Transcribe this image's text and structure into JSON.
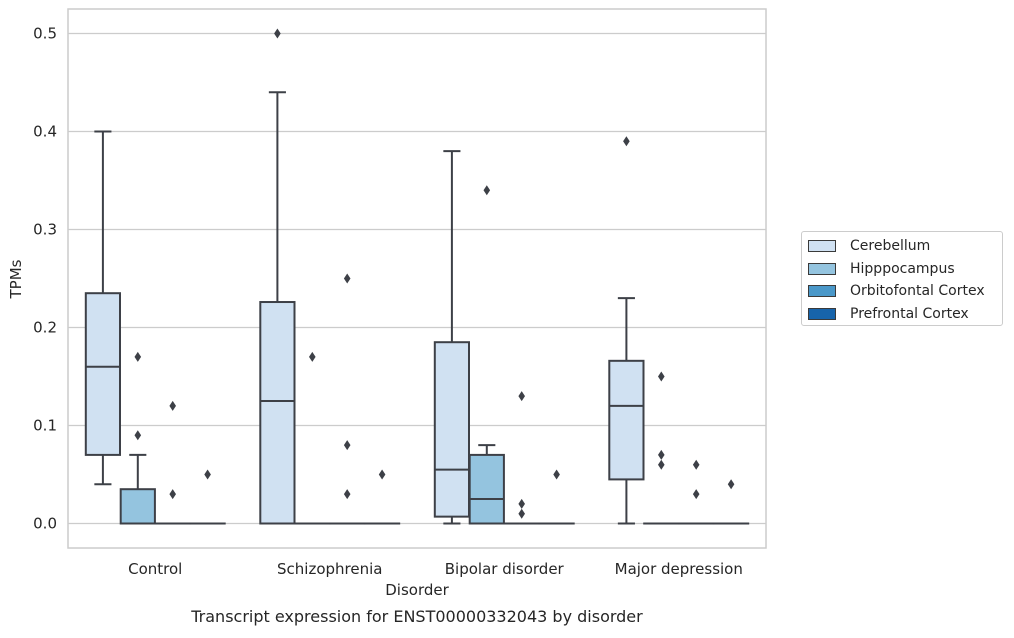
{
  "chart_data": {
    "type": "boxplot",
    "title": "",
    "caption": "Transcript expression for ENST00000332043 by disorder",
    "xlabel": "Disorder",
    "ylabel": "TPMs",
    "ylim": [
      -0.025,
      0.525
    ],
    "yticks": [
      "0.0",
      "0.1",
      "0.2",
      "0.3",
      "0.4",
      "0.5"
    ],
    "ytick_values": [
      0,
      0.1,
      0.2,
      0.3,
      0.4,
      0.5
    ],
    "grid": true,
    "legend_position": "right",
    "categories": [
      "Control",
      "Schizophrenia",
      "Bipolar disorder",
      "Major depression"
    ],
    "series": [
      {
        "name": "Cerebellum",
        "color": "#d0e1f2",
        "boxes": [
          {
            "q1": 0.07,
            "median": 0.16,
            "q3": 0.235,
            "whislo": 0.04,
            "whishi": 0.4,
            "fliers": []
          },
          {
            "q1": 0.0,
            "median": 0.125,
            "q3": 0.226,
            "whislo": 0.0,
            "whishi": 0.44,
            "fliers": [
              0.5
            ]
          },
          {
            "q1": 0.007,
            "median": 0.055,
            "q3": 0.185,
            "whislo": 0.0,
            "whishi": 0.38,
            "fliers": []
          },
          {
            "q1": 0.045,
            "median": 0.12,
            "q3": 0.166,
            "whislo": 0.0,
            "whishi": 0.23,
            "fliers": [
              0.39
            ]
          }
        ]
      },
      {
        "name": "Hipppocampus",
        "color": "#94c4df",
        "boxes": [
          {
            "q1": 0.0,
            "median": 0.0,
            "q3": 0.035,
            "whislo": 0.0,
            "whishi": 0.07,
            "fliers": [
              0.17,
              0.09
            ]
          },
          {
            "q1": 0.0,
            "median": 0.0,
            "q3": 0.0,
            "whislo": 0.0,
            "whishi": 0.0,
            "fliers": [
              0.17
            ]
          },
          {
            "q1": 0.0,
            "median": 0.025,
            "q3": 0.07,
            "whislo": 0.0,
            "whishi": 0.08,
            "fliers": [
              0.34
            ]
          },
          {
            "q1": 0.0,
            "median": 0.0,
            "q3": 0.0,
            "whislo": 0.0,
            "whishi": 0.0,
            "fliers": [
              0.15,
              0.07,
              0.06
            ]
          }
        ]
      },
      {
        "name": "Orbitofontal Cortex",
        "color": "#4a98c9",
        "boxes": [
          {
            "q1": 0.0,
            "median": 0.0,
            "q3": 0.0,
            "whislo": 0.0,
            "whishi": 0.0,
            "fliers": [
              0.12,
              0.03
            ]
          },
          {
            "q1": 0.0,
            "median": 0.0,
            "q3": 0.0,
            "whislo": 0.0,
            "whishi": 0.0,
            "fliers": [
              0.25,
              0.08,
              0.03
            ]
          },
          {
            "q1": 0.0,
            "median": 0.0,
            "q3": 0.0,
            "whislo": 0.0,
            "whishi": 0.0,
            "fliers": [
              0.13,
              0.02,
              0.01
            ]
          },
          {
            "q1": 0.0,
            "median": 0.0,
            "q3": 0.0,
            "whislo": 0.0,
            "whishi": 0.0,
            "fliers": [
              0.06,
              0.03
            ]
          }
        ]
      },
      {
        "name": "Prefrontal Cortex",
        "color": "#1764ab",
        "boxes": [
          {
            "q1": 0.0,
            "median": 0.0,
            "q3": 0.0,
            "whislo": 0.0,
            "whishi": 0.0,
            "fliers": [
              0.05
            ]
          },
          {
            "q1": 0.0,
            "median": 0.0,
            "q3": 0.0,
            "whislo": 0.0,
            "whishi": 0.0,
            "fliers": [
              0.05
            ]
          },
          {
            "q1": 0.0,
            "median": 0.0,
            "q3": 0.0,
            "whislo": 0.0,
            "whishi": 0.0,
            "fliers": [
              0.05
            ]
          },
          {
            "q1": 0.0,
            "median": 0.0,
            "q3": 0.0,
            "whislo": 0.0,
            "whishi": 0.0,
            "fliers": [
              0.04
            ]
          }
        ]
      }
    ]
  }
}
